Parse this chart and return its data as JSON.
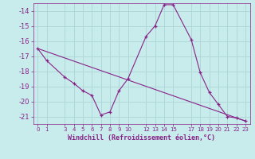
{
  "xlabel": "Windchill (Refroidissement éolien,°C)",
  "background_color": "#c8ecec",
  "grid_color": "#b0d8d8",
  "line_color": "#882288",
  "line1_x": [
    0,
    1,
    3,
    4,
    5,
    6,
    7,
    8,
    9,
    10,
    12,
    13,
    14,
    15,
    17,
    18,
    19,
    20,
    21,
    22,
    23
  ],
  "line1_y": [
    -16.5,
    -17.3,
    -18.4,
    -18.8,
    -19.3,
    -19.6,
    -20.9,
    -20.7,
    -19.3,
    -18.5,
    -15.7,
    -15.0,
    -13.6,
    -13.6,
    -15.9,
    -18.1,
    -19.4,
    -20.2,
    -21.0,
    -21.1,
    -21.3
  ],
  "ylim": [
    -21.5,
    -13.5
  ],
  "xlim": [
    -0.5,
    23.5
  ],
  "yticks": [
    -14,
    -15,
    -16,
    -17,
    -18,
    -19,
    -20,
    -21
  ],
  "xticks": [
    0,
    1,
    3,
    4,
    5,
    6,
    7,
    8,
    9,
    10,
    12,
    13,
    14,
    15,
    17,
    18,
    19,
    20,
    21,
    22,
    23
  ],
  "xtick_labels": [
    "0",
    "1",
    "3",
    "4",
    "5",
    "6",
    "7",
    "8",
    "9",
    "10",
    "12",
    "13",
    "14",
    "15",
    "17",
    "18",
    "19",
    "20",
    "21",
    "22",
    "23"
  ]
}
